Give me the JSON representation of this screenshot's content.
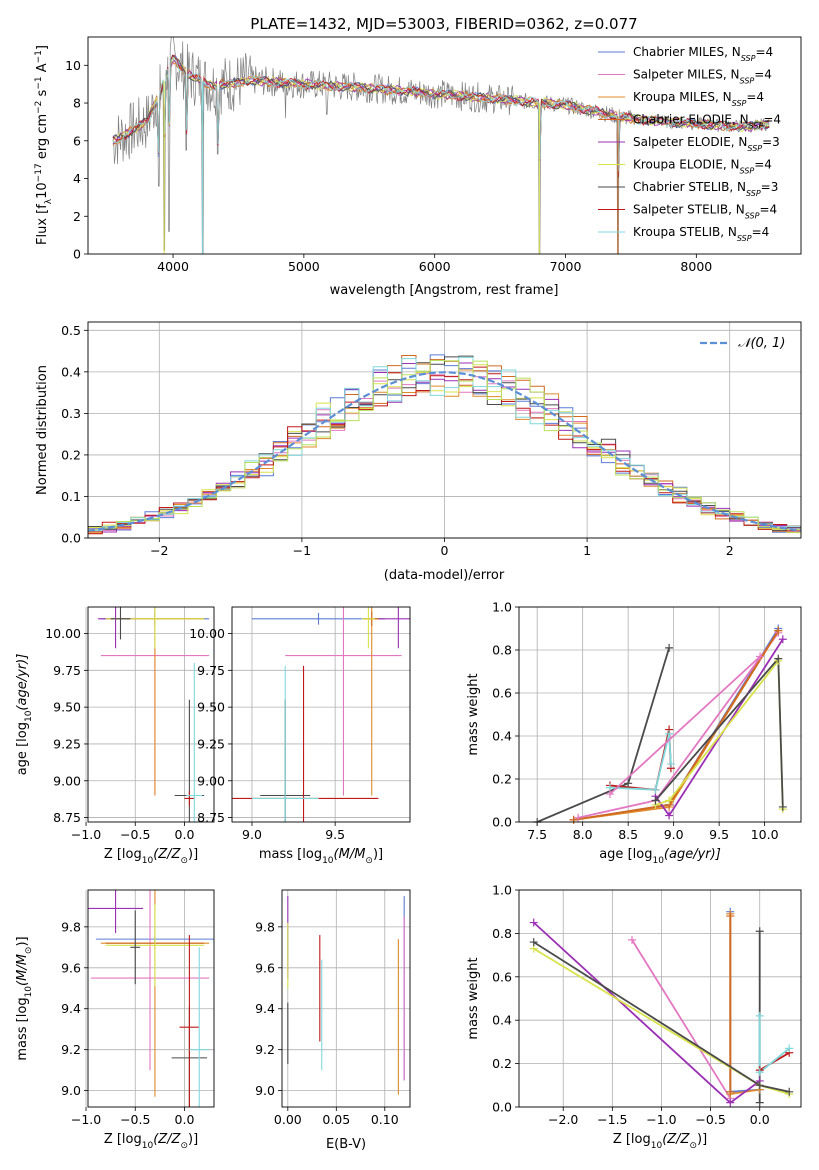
{
  "figure_title": "PLATE=1432, MJD=53003, FIBERID=0362, z=0.077",
  "colors": {
    "Chabrier MILES": "#5b7bd6",
    "Salpeter MILES": "#e377c2",
    "Kroupa MILES": "#e08a2a",
    "Chabrier ELODIE": "#d2691e",
    "Salpeter ELODIE": "#9b30b5",
    "Kroupa ELODIE": "#d8e24a",
    "Chabrier STELIB": "#4a4a4a",
    "Salpeter STELIB": "#c01818",
    "Kroupa STELIB": "#7fd8dc",
    "data": "#808080",
    "gauss": "#5b8fd6",
    "extra_green": "#b8e05a"
  },
  "chart_data": [
    {
      "id": "spectrum",
      "type": "line",
      "title": "PLATE=1432, MJD=53003, FIBERID=0362, z=0.077",
      "xlabel": "wavelength [Angstrom, rest frame]",
      "ylabel_parts": [
        "Flux [f",
        "λ",
        "10",
        "−17",
        " erg cm",
        "−2",
        " s",
        "−1",
        " A",
        "−1",
        "]"
      ],
      "xlim": [
        3350,
        8800
      ],
      "ylim": [
        0,
        11.5
      ],
      "xticks": [
        4000,
        5000,
        6000,
        7000,
        8000
      ],
      "yticks": [
        0,
        2,
        4,
        6,
        8,
        10
      ],
      "grid": false,
      "legend_position": "top-right",
      "legend": [
        {
          "name": "Chabrier MILES",
          "n": "4"
        },
        {
          "name": "Salpeter MILES",
          "n": "4"
        },
        {
          "name": "Kroupa MILES",
          "n": "4"
        },
        {
          "name": "Chabrier ELODIE",
          "n": "4"
        },
        {
          "name": "Salpeter ELODIE",
          "n": "3"
        },
        {
          "name": "Kroupa ELODIE",
          "n": "4"
        },
        {
          "name": "Chabrier STELIB",
          "n": "3"
        },
        {
          "name": "Salpeter STELIB",
          "n": "4"
        },
        {
          "name": "Kroupa STELIB",
          "n": "4"
        }
      ],
      "continuum": [
        [
          3550,
          6.0
        ],
        [
          3700,
          6.6
        ],
        [
          3800,
          7.0
        ],
        [
          3900,
          8.6
        ],
        [
          4000,
          10.4
        ],
        [
          4100,
          9.6
        ],
        [
          4300,
          8.9
        ],
        [
          4600,
          9.2
        ],
        [
          5000,
          9.0
        ],
        [
          5500,
          8.8
        ],
        [
          6000,
          8.5
        ],
        [
          6500,
          8.2
        ],
        [
          7000,
          7.9
        ],
        [
          7400,
          7.3
        ],
        [
          7600,
          7.1
        ],
        [
          7800,
          7.0
        ],
        [
          8000,
          6.9
        ],
        [
          8200,
          6.8
        ],
        [
          8400,
          6.75
        ],
        [
          8550,
          6.9
        ]
      ],
      "dips": [
        [
          3890,
          3.6
        ],
        [
          3932,
          0.2
        ],
        [
          3968,
          1.2
        ],
        [
          4102,
          5.5
        ],
        [
          4226,
          0.0
        ],
        [
          4340,
          5.3
        ],
        [
          4861,
          7.2
        ],
        [
          5175,
          7.4
        ],
        [
          6563,
          8.8
        ],
        [
          6800,
          0.0
        ],
        [
          7400,
          0.0
        ]
      ]
    },
    {
      "id": "residuals",
      "type": "step",
      "xlabel": "(data-model)/error",
      "ylabel": "Normed distribution",
      "xlim": [
        -2.5,
        2.5
      ],
      "ylim": [
        0,
        0.52
      ],
      "xticks": [
        -2,
        -1,
        0,
        1,
        2
      ],
      "yticks": [
        0.0,
        0.1,
        0.2,
        0.3,
        0.4,
        0.5
      ],
      "grid": true,
      "legend_position": "top-right",
      "legend_label": "𝒩(0, 1)",
      "bin_width": 0.1
    },
    {
      "id": "age_Z",
      "type": "errorbar",
      "xlabel_parts": [
        "Z [log",
        "10",
        "(Z/Z",
        "⊙",
        ")]"
      ],
      "ylabel_parts": [
        "age  [log",
        "10",
        "(age/yr)]"
      ],
      "xlim": [
        -0.98,
        0.3
      ],
      "ylim": [
        8.72,
        10.18
      ],
      "xticks": [
        -1.0,
        -0.5,
        0.0
      ],
      "yticks": [
        8.75,
        9.0,
        9.25,
        9.5,
        9.75,
        10.0
      ],
      "grid": true,
      "points": [
        {
          "s": "Chabrier MILES",
          "x": -0.3,
          "xerr": 0.55,
          "y": 10.1,
          "yerr": 0.04
        },
        {
          "s": "Salpeter MILES",
          "x": -0.3,
          "xerr": 0.55,
          "y": 9.85,
          "yerr": 0.95
        },
        {
          "s": "Kroupa MILES",
          "x": -0.3,
          "xerr": 0.5,
          "y": 10.1,
          "yerr": 1.2
        },
        {
          "s": "Chabrier ELODIE",
          "x": -0.3,
          "xerr": 0.5,
          "y": 10.1,
          "yerr": 0.05
        },
        {
          "s": "Salpeter ELODIE",
          "x": -0.7,
          "xerr": 0.18,
          "y": 10.1,
          "yerr": 0.2
        },
        {
          "s": "Kroupa ELODIE",
          "x": -0.3,
          "xerr": 0.5,
          "y": 10.1,
          "yerr": 0.2
        },
        {
          "s": "Chabrier STELIB",
          "x": 0.05,
          "xerr": 0.15,
          "y": 8.9,
          "yerr": 0.65
        },
        {
          "s": "Salpeter STELIB",
          "x": 0.05,
          "xerr": 0.05,
          "y": 8.88,
          "yerr": 0.05
        },
        {
          "s": "Kroupa STELIB",
          "x": 0.1,
          "xerr": 0.08,
          "y": 8.9,
          "yerr": 0.9
        },
        {
          "s": "Chabrier STELIB",
          "x": -0.65,
          "xerr": 0.1,
          "y": 10.1,
          "yerr": 0.14
        }
      ]
    },
    {
      "id": "age_mass",
      "type": "errorbar",
      "xlabel_parts": [
        "mass [log",
        "10",
        "(M/M",
        "⊙",
        ")]"
      ],
      "xlim": [
        8.88,
        9.95
      ],
      "ylim": [
        8.72,
        10.18
      ],
      "xticks": [
        9.0,
        9.5
      ],
      "yticks": [
        8.75,
        9.0,
        9.25,
        9.5,
        9.75,
        10.0
      ],
      "grid": true,
      "points": [
        {
          "s": "Chabrier MILES",
          "x": 9.4,
          "xerr": 0.4,
          "y": 10.1,
          "yerr": 0.04
        },
        {
          "s": "Salpeter MILES",
          "x": 9.55,
          "xerr": 0.35,
          "y": 9.85,
          "yerr": 0.95
        },
        {
          "s": "Kroupa MILES",
          "x": 9.72,
          "xerr": 0.05,
          "y": 10.1,
          "yerr": 1.2
        },
        {
          "s": "Chabrier ELODIE",
          "x": 9.72,
          "xerr": 0.05,
          "y": 10.1,
          "yerr": 0.05
        },
        {
          "s": "Salpeter ELODIE",
          "x": 9.88,
          "xerr": 0.12,
          "y": 10.1,
          "yerr": 0.2
        },
        {
          "s": "Kroupa ELODIE",
          "x": 9.7,
          "xerr": 0.04,
          "y": 10.1,
          "yerr": 0.2
        },
        {
          "s": "Chabrier STELIB",
          "x": 9.2,
          "xerr": 0.15,
          "y": 8.9,
          "yerr": 0.65
        },
        {
          "s": "Salpeter STELIB",
          "x": 9.31,
          "xerr": 0.45,
          "y": 8.88,
          "yerr": 0.9
        },
        {
          "s": "Kroupa STELIB",
          "x": 9.2,
          "xerr": 0.2,
          "y": 8.88,
          "yerr": 0.9
        }
      ]
    },
    {
      "id": "weight_age",
      "type": "line",
      "xlabel_parts": [
        "age  [log",
        "10",
        "(age/yr)]"
      ],
      "ylabel": "mass weight",
      "xlim": [
        7.3,
        10.4
      ],
      "ylim": [
        0,
        1.0
      ],
      "xticks": [
        7.5,
        8.0,
        8.5,
        9.0,
        9.5,
        10.0
      ],
      "yticks": [
        0.0,
        0.2,
        0.4,
        0.6,
        0.8,
        1.0
      ],
      "grid": true,
      "series": [
        {
          "s": "Chabrier MILES",
          "x": [
            7.9,
            8.95,
            10.15
          ],
          "y": [
            0.01,
            0.08,
            0.9
          ]
        },
        {
          "s": "Salpeter MILES",
          "x": [
            7.95,
            8.8,
            10.15
          ],
          "y": [
            0.02,
            0.1,
            0.88
          ]
        },
        {
          "s": "Kroupa MILES",
          "x": [
            7.9,
            8.95,
            10.15
          ],
          "y": [
            0.01,
            0.07,
            0.89
          ]
        },
        {
          "s": "Chabrier ELODIE",
          "x": [
            7.9,
            8.95,
            10.15
          ],
          "y": [
            0.01,
            0.08,
            0.89
          ]
        },
        {
          "s": "Salpeter ELODIE",
          "x": [
            8.8,
            8.95,
            10.2
          ],
          "y": [
            0.12,
            0.03,
            0.85
          ]
        },
        {
          "s": "Kroupa ELODIE",
          "x": [
            8.8,
            8.95,
            10.15,
            10.2
          ],
          "y": [
            0.08,
            0.1,
            0.75,
            0.06
          ]
        },
        {
          "s": "Chabrier STELIB",
          "x": [
            7.5,
            8.5,
            8.95
          ],
          "y": [
            0.0,
            0.18,
            0.81
          ]
        },
        {
          "s": "Salpeter STELIB",
          "x": [
            8.3,
            8.8,
            8.95,
            8.97
          ],
          "y": [
            0.17,
            0.15,
            0.43,
            0.25
          ]
        },
        {
          "s": "Kroupa STELIB",
          "x": [
            8.3,
            8.8,
            8.95,
            8.97
          ],
          "y": [
            0.16,
            0.15,
            0.41,
            0.27
          ]
        },
        {
          "s": "Salpeter MILES",
          "x": [
            8.3,
            9.95
          ],
          "y": [
            0.13,
            0.77
          ]
        },
        {
          "s": "Chabrier STELIB",
          "x": [
            8.8,
            10.15,
            10.2
          ],
          "y": [
            0.1,
            0.76,
            0.07
          ]
        }
      ]
    },
    {
      "id": "mass_Z",
      "type": "errorbar",
      "xlabel_parts": [
        "Z [log",
        "10",
        "(Z/Z",
        "⊙",
        ")]"
      ],
      "ylabel_parts": [
        "mass [log",
        "10",
        "(M/M",
        "⊙",
        ")]"
      ],
      "xlim": [
        -0.98,
        0.3
      ],
      "ylim": [
        8.92,
        9.98
      ],
      "xticks": [
        -1.0,
        -0.5,
        0.0
      ],
      "yticks": [
        9.0,
        9.2,
        9.4,
        9.6,
        9.8
      ],
      "grid": true,
      "points": [
        {
          "s": "Chabrier MILES",
          "x": -0.3,
          "xerr": 0.6,
          "y": 9.74,
          "yerr": 0.02
        },
        {
          "s": "Salpeter MILES",
          "x": -0.35,
          "xerr": 0.6,
          "y": 9.55,
          "yerr": 0.45
        },
        {
          "s": "Kroupa MILES",
          "x": -0.3,
          "xerr": 0.55,
          "y": 9.72,
          "yerr": 0.75
        },
        {
          "s": "Chabrier ELODIE",
          "x": -0.3,
          "xerr": 0.5,
          "y": 9.72,
          "yerr": 0.03
        },
        {
          "s": "Salpeter ELODIE",
          "x": -0.7,
          "xerr": 0.28,
          "y": 9.89,
          "yerr": 0.12
        },
        {
          "s": "Kroupa ELODIE",
          "x": -0.3,
          "xerr": 0.5,
          "y": 9.71,
          "yerr": 0.2
        },
        {
          "s": "Chabrier STELIB",
          "x": 0.05,
          "xerr": 0.18,
          "y": 9.16,
          "yerr": 0.25
        },
        {
          "s": "Salpeter STELIB",
          "x": 0.05,
          "xerr": 0.1,
          "y": 9.31,
          "yerr": 0.45
        },
        {
          "s": "Kroupa STELIB",
          "x": 0.15,
          "xerr": 0.1,
          "y": 9.2,
          "yerr": 0.5
        },
        {
          "s": "Chabrier STELIB",
          "x": -0.5,
          "xerr": 0.05,
          "y": 9.7,
          "yerr": 0.18
        }
      ]
    },
    {
      "id": "mass_EBV",
      "type": "errorbar",
      "xlabel": "E(B-V)",
      "xlim": [
        -0.006,
        0.126
      ],
      "ylim": [
        8.92,
        9.98
      ],
      "xticks": [
        0.0,
        0.05,
        0.1
      ],
      "yticks": [
        9.0,
        9.2,
        9.4,
        9.6,
        9.8
      ],
      "grid": true,
      "points": [
        {
          "s": "Chabrier MILES",
          "x": 0.12,
          "xerr": 0,
          "y": 9.5,
          "yerr": 0.45
        },
        {
          "s": "Salpeter MILES",
          "x": 0.12,
          "xerr": 0,
          "y": 9.45,
          "yerr": 0.4
        },
        {
          "s": "Kroupa MILES",
          "x": 0.114,
          "xerr": 0,
          "y": 9.36,
          "yerr": 0.38
        },
        {
          "s": "Salpeter ELODIE",
          "x": 0.0,
          "xerr": 0,
          "y": 9.75,
          "yerr": 0.2
        },
        {
          "s": "Kroupa ELODIE",
          "x": 0.0,
          "xerr": 0,
          "y": 9.66,
          "yerr": 0.16
        },
        {
          "s": "Chabrier STELIB",
          "x": 0.0,
          "xerr": 0,
          "y": 9.28,
          "yerr": 0.15
        },
        {
          "s": "Salpeter STELIB",
          "x": 0.033,
          "xerr": 0,
          "y": 9.5,
          "yerr": 0.26
        },
        {
          "s": "Kroupa STELIB",
          "x": 0.035,
          "xerr": 0,
          "y": 9.37,
          "yerr": 0.27
        }
      ]
    },
    {
      "id": "weight_Z",
      "type": "line",
      "xlabel_parts": [
        "Z [log",
        "10",
        "(Z/Z",
        "⊙",
        ")]"
      ],
      "ylabel": "mass weight",
      "xlim": [
        -2.45,
        0.42
      ],
      "ylim": [
        0,
        1.0
      ],
      "xticks": [
        -2.0,
        -1.5,
        -1.0,
        -0.5,
        0.0
      ],
      "yticks": [
        0.0,
        0.2,
        0.4,
        0.6,
        0.8,
        1.0
      ],
      "grid": true,
      "series": [
        {
          "s": "Chabrier MILES",
          "x": [
            -0.3,
            -0.3,
            0.0
          ],
          "y": [
            0.9,
            0.07,
            0.08
          ]
        },
        {
          "s": "Salpeter MILES",
          "x": [
            -1.3,
            -0.3
          ],
          "y": [
            0.77,
            0.04
          ]
        },
        {
          "s": "Kroupa MILES",
          "x": [
            -0.3,
            -0.3,
            0.0
          ],
          "y": [
            0.89,
            0.06,
            0.08
          ]
        },
        {
          "s": "Chabrier ELODIE",
          "x": [
            -0.3,
            -0.3
          ],
          "y": [
            0.88,
            0.07
          ]
        },
        {
          "s": "Salpeter ELODIE",
          "x": [
            -2.3,
            -0.3,
            0.0
          ],
          "y": [
            0.85,
            0.02,
            0.12
          ]
        },
        {
          "s": "Kroupa ELODIE",
          "x": [
            -2.3,
            0.0,
            0.3
          ],
          "y": [
            0.73,
            0.1,
            0.06
          ]
        },
        {
          "s": "Chabrier STELIB",
          "x": [
            0.0,
            0.0
          ],
          "y": [
            0.81,
            0.02
          ]
        },
        {
          "s": "Salpeter STELIB",
          "x": [
            0.0,
            0.3
          ],
          "y": [
            0.17,
            0.25
          ]
        },
        {
          "s": "Kroupa STELIB",
          "x": [
            0.0,
            0.0,
            0.3
          ],
          "y": [
            0.42,
            0.16,
            0.27
          ]
        },
        {
          "s": "Chabrier STELIB",
          "x": [
            -2.3,
            0.0,
            0.3
          ],
          "y": [
            0.76,
            0.1,
            0.07
          ]
        }
      ]
    }
  ]
}
